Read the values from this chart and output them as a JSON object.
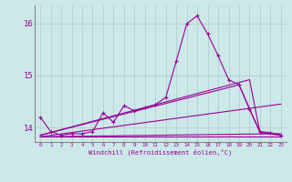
{
  "xlabel": "Windchill (Refroidissement éolien,°C)",
  "background_color": "#cce8e8",
  "grid_color": "#aacccc",
  "line_color": "#990099",
  "xlim": [
    -0.5,
    23.5
  ],
  "ylim": [
    13.72,
    16.35
  ],
  "yticks": [
    14,
    15,
    16
  ],
  "xticks": [
    0,
    1,
    2,
    3,
    4,
    5,
    6,
    7,
    8,
    9,
    10,
    11,
    12,
    13,
    14,
    15,
    16,
    17,
    18,
    19,
    20,
    21,
    22,
    23
  ],
  "series": [
    {
      "x": [
        0,
        1,
        2,
        3,
        4,
        5,
        6,
        7,
        8,
        9,
        10,
        11,
        12,
        13,
        14,
        15,
        16,
        17,
        18,
        19,
        20,
        21,
        22,
        23
      ],
      "y": [
        14.2,
        13.92,
        13.85,
        13.88,
        13.88,
        13.92,
        14.28,
        14.1,
        14.42,
        14.32,
        14.38,
        14.44,
        14.58,
        15.28,
        16.0,
        16.15,
        15.8,
        15.38,
        14.92,
        14.82,
        14.35,
        13.92,
        13.9,
        13.85
      ],
      "marker": "+",
      "lw": 0.8
    },
    {
      "x": [
        0,
        23
      ],
      "y": [
        13.82,
        13.82
      ],
      "marker": null,
      "lw": 0.8
    },
    {
      "x": [
        0,
        23
      ],
      "y": [
        13.82,
        13.88
      ],
      "marker": null,
      "lw": 0.8
    },
    {
      "x": [
        0,
        23
      ],
      "y": [
        13.82,
        14.45
      ],
      "marker": null,
      "lw": 0.8
    },
    {
      "x": [
        0,
        19,
        21,
        23
      ],
      "y": [
        13.85,
        14.82,
        13.9,
        13.85
      ],
      "marker": null,
      "lw": 0.8
    },
    {
      "x": [
        0,
        20,
        21,
        23
      ],
      "y": [
        13.85,
        14.92,
        13.9,
        13.85
      ],
      "marker": null,
      "lw": 0.8
    }
  ]
}
